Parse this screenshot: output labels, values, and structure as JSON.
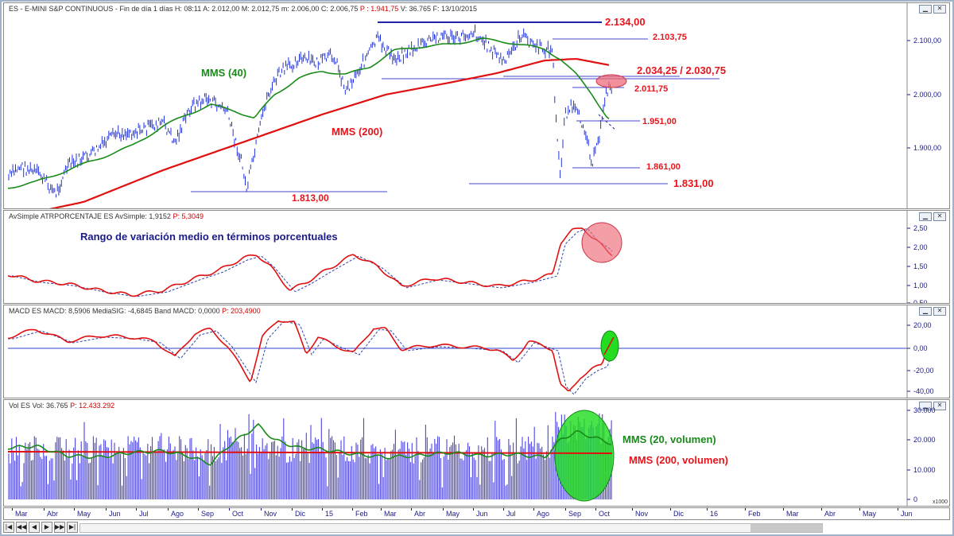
{
  "main_pane": {
    "header": "ES - E-MINI S&P CONTINUOUS - Fin de día 1 días H: 08:11 A: 2.012,00 M: 2.012,75 m: 2.006,00 C: 2.006,75",
    "header_red": "P : 1.941,75",
    "header_tail": "V: 36.765 F: 13/10/2015",
    "labels": {
      "mms40": "MMS (40)",
      "mms200": "MMS (200)",
      "l2134": "2.134,00",
      "l2103": "2.103,75",
      "l2034": "2.034,25 / 2.030,75",
      "l2011": "2.011,75",
      "l1951": "1.951,00",
      "l1861": "1.861,00",
      "l1831": "1.831,00",
      "l1813": "1.813,00"
    },
    "yticks": [
      "2.100,00",
      "2.000,00",
      "1.900,00"
    ]
  },
  "atr_pane": {
    "header": "AvSimple ATRPORCENTAJE ES AvSimple: 1,9152",
    "header_red": "P: 5,3049",
    "title": "Rango de variación medio en términos porcentuales",
    "yticks": [
      "2,50",
      "2,00",
      "1,50",
      "1,00",
      "0,50"
    ]
  },
  "macd_pane": {
    "header": "MACD ES MACD: 8,5906 MediaSIG: -4,6845 Band MACD: 0,0000",
    "header_red": "P: 203,4900",
    "yticks": [
      "20,00",
      "0,00",
      "-20,00",
      "-40,00"
    ]
  },
  "vol_pane": {
    "header": "Vol ES Vol: 36.765",
    "header_red": "P: 12.433.292",
    "labels": {
      "mms20": "MMS (20, volumen)",
      "mms200v": "MMS (200, volumen)"
    },
    "yticks": [
      "30.000",
      "20.000",
      "10.000",
      "0"
    ],
    "scale": "x1000"
  },
  "xaxis": {
    "labels": [
      "Mar",
      "Abr",
      "May",
      "Jun",
      "Jul",
      "Ago",
      "Sep",
      "Oct",
      "Nov",
      "Dic",
      "15",
      "Feb",
      "Mar",
      "Abr",
      "May",
      "Jun",
      "Jul",
      "Ago",
      "Sep",
      "Oct",
      "Nov",
      "Dic",
      "16",
      "Feb",
      "Mar",
      "Abr",
      "May",
      "Jun"
    ]
  },
  "chart_data": {
    "type": "line",
    "title": "ES - E-MINI S&P CONTINUOUS",
    "period": "Mar 2014 - Oct 2015",
    "series": [
      {
        "name": "MMS (40)",
        "color": "#1a8a1a",
        "values": [
          1850,
          1860,
          1870,
          1880,
          1900,
          1930,
          1960,
          1980,
          1975,
          1980,
          1990,
          2020,
          2050,
          2070,
          2080,
          2090,
          2100,
          2090,
          2060,
          2000,
          1960
        ]
      },
      {
        "name": "MMS (200)",
        "color": "#e01010",
        "values": [
          1780,
          1790,
          1805,
          1820,
          1840,
          1860,
          1880,
          1900,
          1920,
          1950,
          1975,
          1995,
          2010,
          2025,
          2040,
          2055,
          2065,
          2070,
          2065,
          2060,
          2055
        ]
      }
    ],
    "levels": [
      2134.0,
      2103.75,
      2034.25,
      2030.75,
      2011.75,
      1951.0,
      1861.0,
      1831.0,
      1813.0
    ],
    "colors": {
      "price": "#2233dd",
      "mms40": "#1a8a1a",
      "mms200": "#e01010",
      "signal": "#1a1a8a"
    }
  }
}
